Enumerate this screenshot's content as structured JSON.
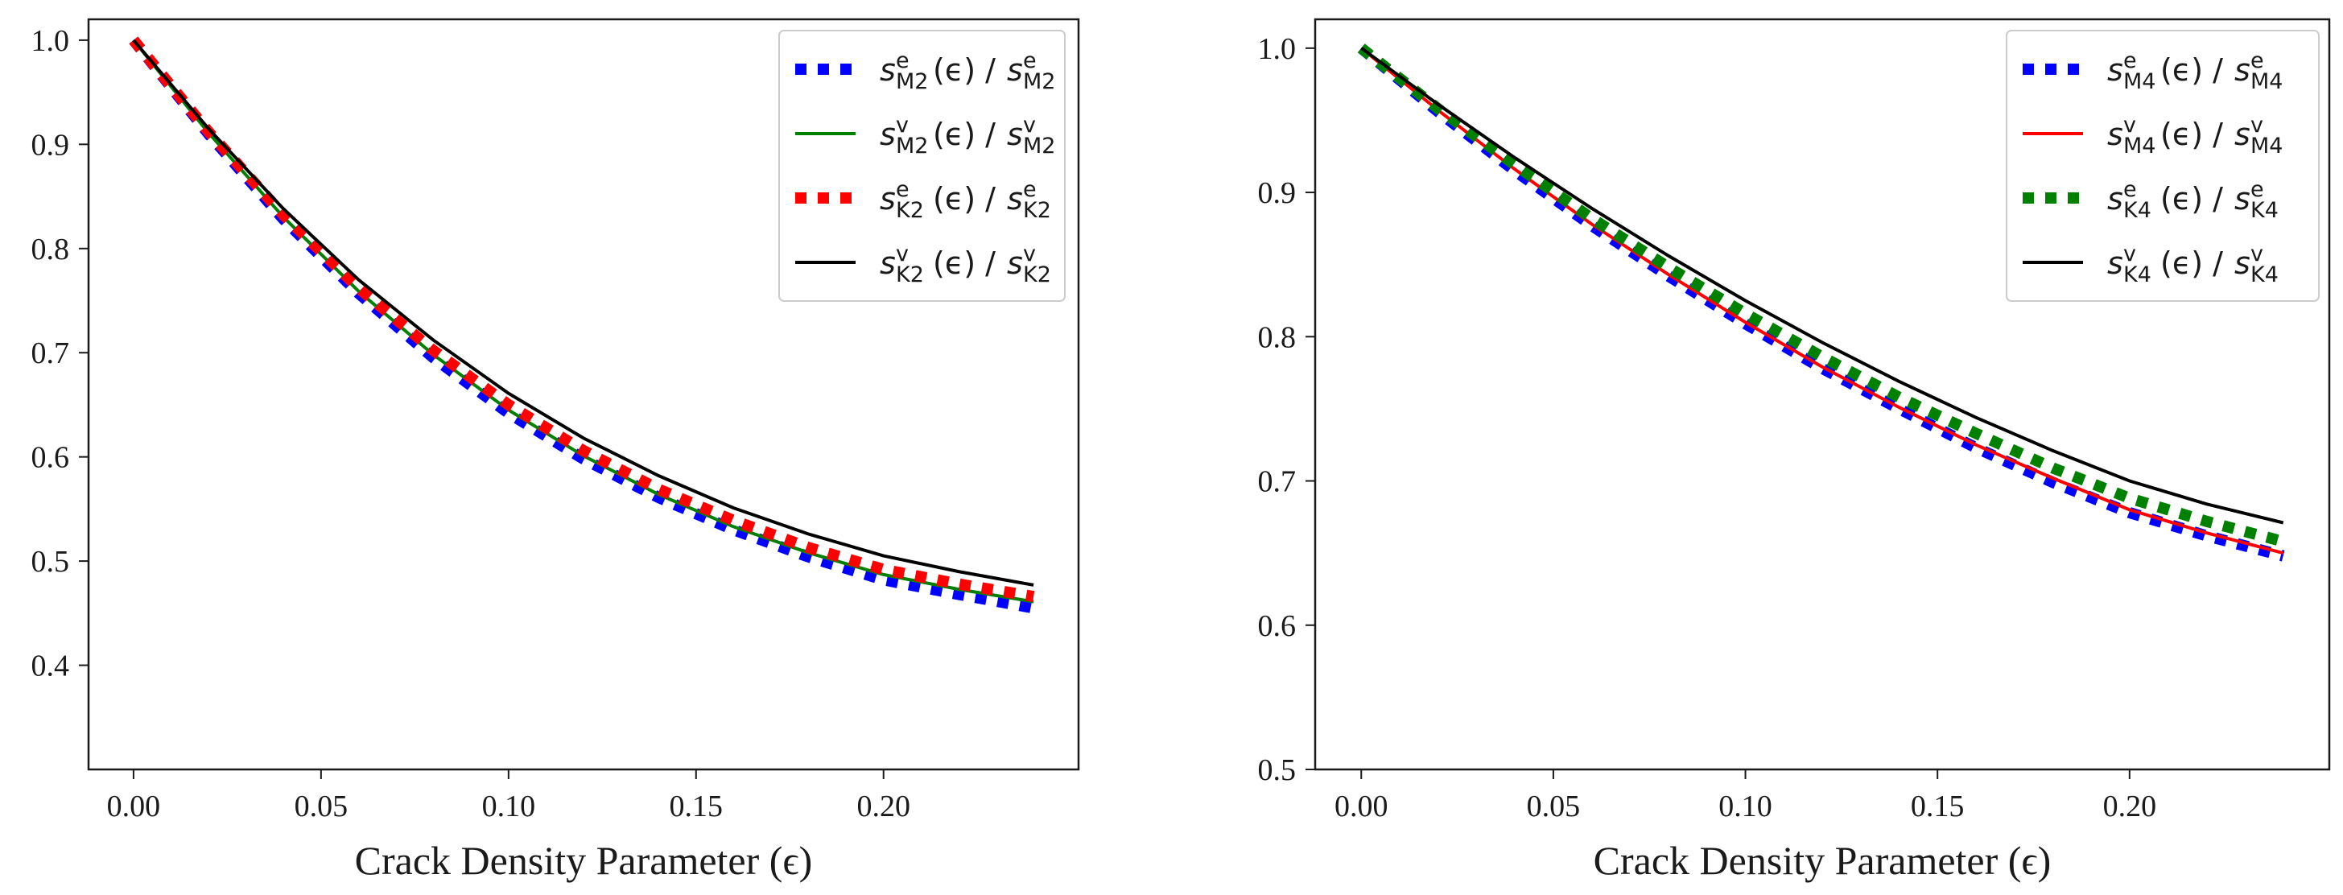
{
  "chart_data": [
    {
      "type": "line",
      "xlabel": "Crack Density Parameter (ϵ)",
      "ylabel": "",
      "xlim": [
        -0.012,
        0.252
      ],
      "ylim": [
        0.3,
        1.02
      ],
      "xticks": [
        0.0,
        0.05,
        0.1,
        0.15,
        0.2
      ],
      "xtick_labels": [
        "0.00",
        "0.05",
        "0.10",
        "0.15",
        "0.20"
      ],
      "yticks": [
        0.4,
        0.5,
        0.6,
        0.7,
        0.8,
        0.9,
        1.0
      ],
      "ytick_labels": [
        "0.4",
        "0.5",
        "0.6",
        "0.7",
        "0.8",
        "0.9",
        "1.0"
      ],
      "legend_position": "top-right",
      "x": [
        0.0,
        0.02,
        0.04,
        0.06,
        0.08,
        0.1,
        0.12,
        0.14,
        0.16,
        0.18,
        0.2,
        0.22,
        0.24
      ],
      "series": [
        {
          "name": "sM2e",
          "sym": "s",
          "sub": "M2",
          "sup": "e",
          "arg": "(ϵ)",
          "style": "dotted",
          "color": "#0000ff",
          "values": [
            1.0,
            0.91,
            0.828,
            0.757,
            0.695,
            0.642,
            0.598,
            0.561,
            0.53,
            0.504,
            0.482,
            0.468,
            0.455
          ]
        },
        {
          "name": "sM2v",
          "sym": "s",
          "sub": "M2",
          "sup": "v",
          "arg": "(ϵ)",
          "style": "solid",
          "color": "#008000",
          "values": [
            1.0,
            0.911,
            0.83,
            0.759,
            0.698,
            0.645,
            0.601,
            0.564,
            0.533,
            0.508,
            0.487,
            0.473,
            0.461
          ]
        },
        {
          "name": "sK2e",
          "sym": "s",
          "sub": "K2",
          "sup": "e",
          "arg": "(ϵ)",
          "style": "dotted",
          "color": "#ff0000",
          "values": [
            1.0,
            0.912,
            0.832,
            0.762,
            0.702,
            0.65,
            0.606,
            0.569,
            0.539,
            0.513,
            0.492,
            0.478,
            0.466
          ]
        },
        {
          "name": "sK2v",
          "sym": "s",
          "sub": "K2",
          "sup": "v",
          "arg": "(ϵ)",
          "style": "solid",
          "color": "#000000",
          "values": [
            1.0,
            0.915,
            0.838,
            0.77,
            0.712,
            0.661,
            0.618,
            0.582,
            0.551,
            0.526,
            0.505,
            0.49,
            0.477
          ]
        }
      ]
    },
    {
      "type": "line",
      "xlabel": "Crack Density Parameter (ϵ)",
      "ylabel": "",
      "xlim": [
        -0.012,
        0.252
      ],
      "ylim": [
        0.5,
        1.02
      ],
      "xticks": [
        0.0,
        0.05,
        0.1,
        0.15,
        0.2
      ],
      "xtick_labels": [
        "0.00",
        "0.05",
        "0.10",
        "0.15",
        "0.20"
      ],
      "yticks": [
        0.5,
        0.6,
        0.7,
        0.8,
        0.9,
        1.0
      ],
      "ytick_labels": [
        "0.5",
        "0.6",
        "0.7",
        "0.8",
        "0.9",
        "1.0"
      ],
      "legend_position": "top-right",
      "x": [
        0.0,
        0.02,
        0.04,
        0.06,
        0.08,
        0.1,
        0.12,
        0.14,
        0.16,
        0.18,
        0.2,
        0.22,
        0.24
      ],
      "series": [
        {
          "name": "sM4e",
          "sym": "s",
          "sub": "M4",
          "sup": "e",
          "arg": "(ϵ)",
          "style": "dotted",
          "color": "#0000ff",
          "values": [
            1.0,
            0.956,
            0.915,
            0.877,
            0.842,
            0.809,
            0.778,
            0.75,
            0.723,
            0.699,
            0.678,
            0.662,
            0.648
          ]
        },
        {
          "name": "sM4v",
          "sym": "s",
          "sub": "M4",
          "sup": "v",
          "arg": "(ϵ)",
          "style": "solid",
          "color": "#ff0000",
          "values": [
            1.0,
            0.957,
            0.916,
            0.878,
            0.843,
            0.81,
            0.779,
            0.751,
            0.725,
            0.702,
            0.68,
            0.664,
            0.65
          ]
        },
        {
          "name": "sK4e",
          "sym": "s",
          "sub": "K4",
          "sup": "e",
          "arg": "(ϵ)",
          "style": "dotted",
          "color": "#008000",
          "values": [
            1.0,
            0.958,
            0.919,
            0.882,
            0.848,
            0.816,
            0.786,
            0.758,
            0.733,
            0.709,
            0.688,
            0.672,
            0.658
          ]
        },
        {
          "name": "sK4v",
          "sym": "s",
          "sub": "K4",
          "sup": "v",
          "arg": "(ϵ)",
          "style": "solid",
          "color": "#000000",
          "values": [
            1.0,
            0.961,
            0.924,
            0.889,
            0.856,
            0.825,
            0.796,
            0.769,
            0.744,
            0.721,
            0.7,
            0.684,
            0.671
          ]
        }
      ]
    }
  ]
}
